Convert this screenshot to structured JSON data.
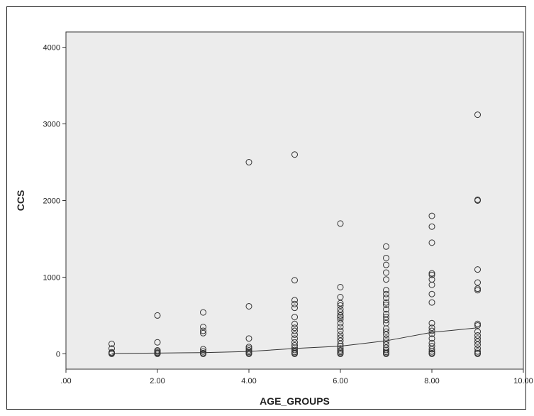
{
  "chart_data": {
    "type": "scatter",
    "xlabel": "AGE_GROUPS",
    "ylabel": "CCS",
    "xlim": [
      0,
      10
    ],
    "ylim": [
      -200,
      4200
    ],
    "x_ticks": [
      0,
      2,
      4,
      6,
      8,
      10
    ],
    "x_tick_labels": [
      ".00",
      "2.00",
      "4.00",
      "6.00",
      "8.00",
      "10.00"
    ],
    "y_ticks": [
      0,
      1000,
      2000,
      3000,
      4000
    ],
    "y_tick_labels": [
      "0",
      "1000",
      "2000",
      "3000",
      "4000"
    ],
    "grid": false,
    "plot_background": "#ececec",
    "marker_color": "#333333",
    "fit_line": {
      "x": [
        1,
        2,
        3,
        4,
        5,
        6,
        7,
        8,
        9
      ],
      "y": [
        5,
        10,
        15,
        30,
        70,
        100,
        170,
        280,
        340
      ]
    },
    "points": [
      {
        "x": 1,
        "y": 0
      },
      {
        "x": 1,
        "y": 10
      },
      {
        "x": 1,
        "y": 20
      },
      {
        "x": 1,
        "y": 70
      },
      {
        "x": 1,
        "y": 130
      },
      {
        "x": 2,
        "y": 0
      },
      {
        "x": 2,
        "y": 5
      },
      {
        "x": 2,
        "y": 15
      },
      {
        "x": 2,
        "y": 30
      },
      {
        "x": 2,
        "y": 45
      },
      {
        "x": 2,
        "y": 150
      },
      {
        "x": 2,
        "y": 500
      },
      {
        "x": 3,
        "y": 0
      },
      {
        "x": 3,
        "y": 10
      },
      {
        "x": 3,
        "y": 30
      },
      {
        "x": 3,
        "y": 60
      },
      {
        "x": 3,
        "y": 270
      },
      {
        "x": 3,
        "y": 300
      },
      {
        "x": 3,
        "y": 350
      },
      {
        "x": 3,
        "y": 540
      },
      {
        "x": 4,
        "y": 0
      },
      {
        "x": 4,
        "y": 10
      },
      {
        "x": 4,
        "y": 25
      },
      {
        "x": 4,
        "y": 45
      },
      {
        "x": 4,
        "y": 70
      },
      {
        "x": 4,
        "y": 90
      },
      {
        "x": 4,
        "y": 200
      },
      {
        "x": 4,
        "y": 620
      },
      {
        "x": 4,
        "y": 2500
      },
      {
        "x": 5,
        "y": 0
      },
      {
        "x": 5,
        "y": 10
      },
      {
        "x": 5,
        "y": 25
      },
      {
        "x": 5,
        "y": 50
      },
      {
        "x": 5,
        "y": 80
      },
      {
        "x": 5,
        "y": 110
      },
      {
        "x": 5,
        "y": 150
      },
      {
        "x": 5,
        "y": 200
      },
      {
        "x": 5,
        "y": 250
      },
      {
        "x": 5,
        "y": 300
      },
      {
        "x": 5,
        "y": 340
      },
      {
        "x": 5,
        "y": 390
      },
      {
        "x": 5,
        "y": 480
      },
      {
        "x": 5,
        "y": 600
      },
      {
        "x": 5,
        "y": 650
      },
      {
        "x": 5,
        "y": 700
      },
      {
        "x": 5,
        "y": 960
      },
      {
        "x": 5,
        "y": 2600
      },
      {
        "x": 6,
        "y": 0
      },
      {
        "x": 6,
        "y": 10
      },
      {
        "x": 6,
        "y": 25
      },
      {
        "x": 6,
        "y": 45
      },
      {
        "x": 6,
        "y": 70
      },
      {
        "x": 6,
        "y": 100
      },
      {
        "x": 6,
        "y": 130
      },
      {
        "x": 6,
        "y": 170
      },
      {
        "x": 6,
        "y": 210
      },
      {
        "x": 6,
        "y": 250
      },
      {
        "x": 6,
        "y": 300
      },
      {
        "x": 6,
        "y": 350
      },
      {
        "x": 6,
        "y": 400
      },
      {
        "x": 6,
        "y": 450
      },
      {
        "x": 6,
        "y": 480
      },
      {
        "x": 6,
        "y": 500
      },
      {
        "x": 6,
        "y": 540
      },
      {
        "x": 6,
        "y": 580
      },
      {
        "x": 6,
        "y": 630
      },
      {
        "x": 6,
        "y": 660
      },
      {
        "x": 6,
        "y": 740
      },
      {
        "x": 6,
        "y": 870
      },
      {
        "x": 6,
        "y": 1700
      },
      {
        "x": 7,
        "y": 0
      },
      {
        "x": 7,
        "y": 10
      },
      {
        "x": 7,
        "y": 25
      },
      {
        "x": 7,
        "y": 50
      },
      {
        "x": 7,
        "y": 80
      },
      {
        "x": 7,
        "y": 120
      },
      {
        "x": 7,
        "y": 160
      },
      {
        "x": 7,
        "y": 200
      },
      {
        "x": 7,
        "y": 250
      },
      {
        "x": 7,
        "y": 290
      },
      {
        "x": 7,
        "y": 330
      },
      {
        "x": 7,
        "y": 400
      },
      {
        "x": 7,
        "y": 440
      },
      {
        "x": 7,
        "y": 480
      },
      {
        "x": 7,
        "y": 520
      },
      {
        "x": 7,
        "y": 580
      },
      {
        "x": 7,
        "y": 640
      },
      {
        "x": 7,
        "y": 670
      },
      {
        "x": 7,
        "y": 730
      },
      {
        "x": 7,
        "y": 780
      },
      {
        "x": 7,
        "y": 830
      },
      {
        "x": 7,
        "y": 970
      },
      {
        "x": 7,
        "y": 1060
      },
      {
        "x": 7,
        "y": 1160
      },
      {
        "x": 7,
        "y": 1250
      },
      {
        "x": 7,
        "y": 1400
      },
      {
        "x": 8,
        "y": 0
      },
      {
        "x": 8,
        "y": 10
      },
      {
        "x": 8,
        "y": 30
      },
      {
        "x": 8,
        "y": 60
      },
      {
        "x": 8,
        "y": 100
      },
      {
        "x": 8,
        "y": 140
      },
      {
        "x": 8,
        "y": 200
      },
      {
        "x": 8,
        "y": 260
      },
      {
        "x": 8,
        "y": 300
      },
      {
        "x": 8,
        "y": 340
      },
      {
        "x": 8,
        "y": 400
      },
      {
        "x": 8,
        "y": 670
      },
      {
        "x": 8,
        "y": 780
      },
      {
        "x": 8,
        "y": 900
      },
      {
        "x": 8,
        "y": 970
      },
      {
        "x": 8,
        "y": 1030
      },
      {
        "x": 8,
        "y": 1050
      },
      {
        "x": 8,
        "y": 1450
      },
      {
        "x": 8,
        "y": 1660
      },
      {
        "x": 8,
        "y": 1800
      },
      {
        "x": 9,
        "y": 0
      },
      {
        "x": 9,
        "y": 10
      },
      {
        "x": 9,
        "y": 30
      },
      {
        "x": 9,
        "y": 70
      },
      {
        "x": 9,
        "y": 120
      },
      {
        "x": 9,
        "y": 160
      },
      {
        "x": 9,
        "y": 200
      },
      {
        "x": 9,
        "y": 240
      },
      {
        "x": 9,
        "y": 290
      },
      {
        "x": 9,
        "y": 370
      },
      {
        "x": 9,
        "y": 390
      },
      {
        "x": 9,
        "y": 830
      },
      {
        "x": 9,
        "y": 850
      },
      {
        "x": 9,
        "y": 930
      },
      {
        "x": 9,
        "y": 1100
      },
      {
        "x": 9,
        "y": 2000
      },
      {
        "x": 9,
        "y": 2010
      },
      {
        "x": 9,
        "y": 3120
      }
    ]
  }
}
